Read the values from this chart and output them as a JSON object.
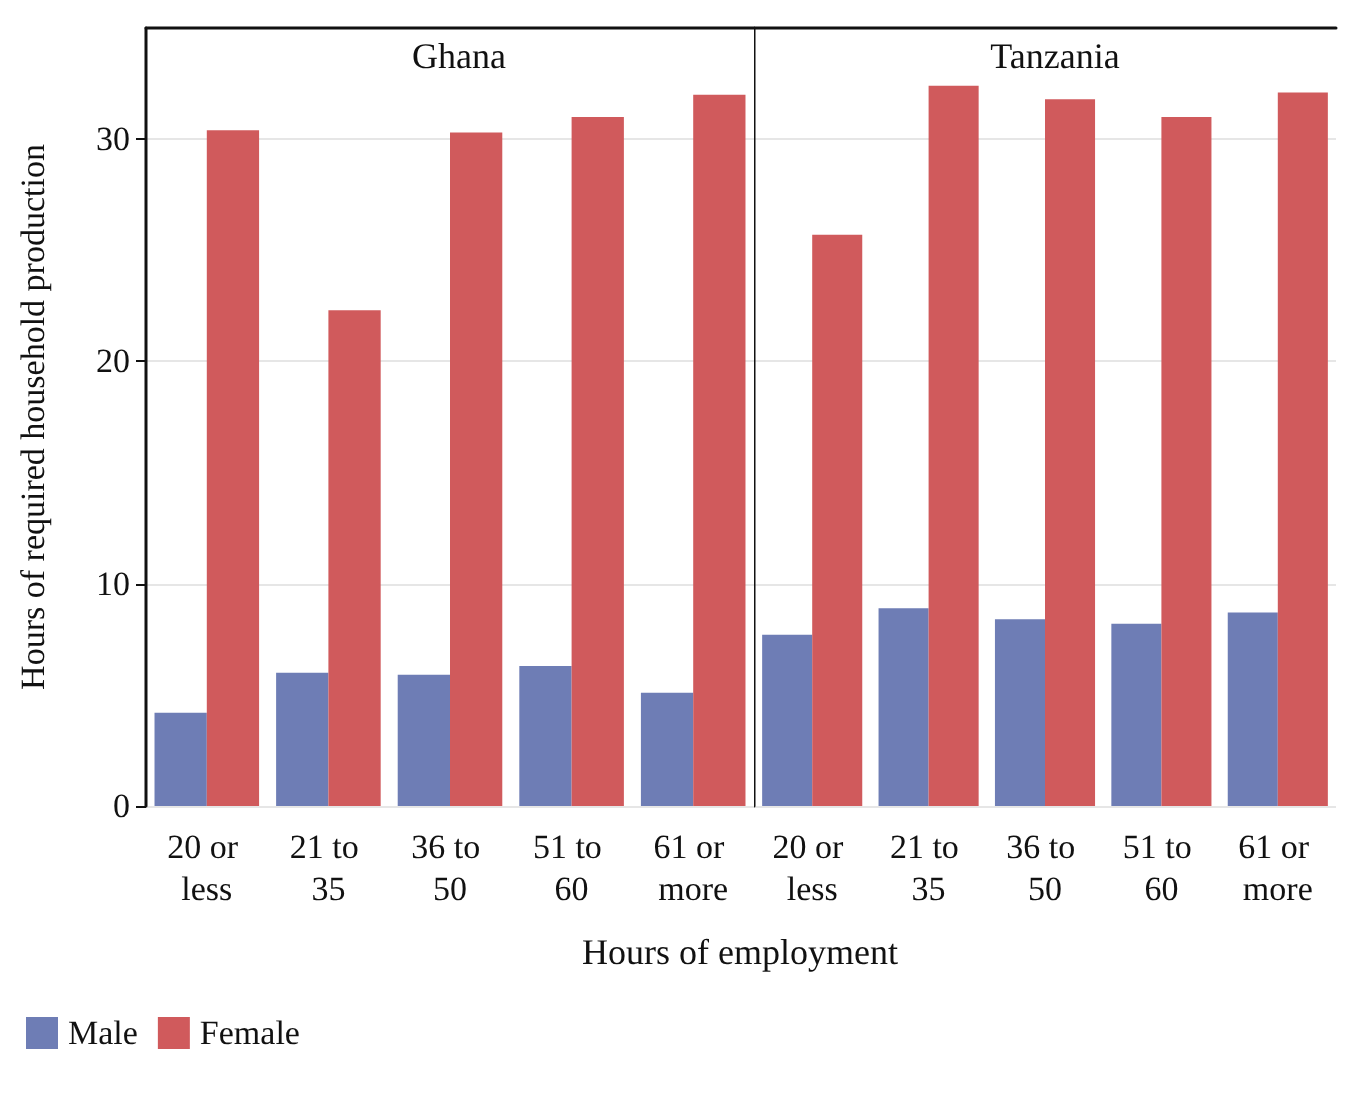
{
  "chart_data": [
    {
      "type": "bar",
      "title": "Ghana",
      "xlabel": "Hours of employment",
      "ylabel": "Hours of required household production",
      "categories": [
        "20 or less",
        "21 to 35",
        "36 to 50",
        "51 to 60",
        "61 or more"
      ],
      "series": [
        {
          "name": "Male",
          "color": "#6e7db5",
          "values": [
            4.2,
            6.0,
            5.9,
            6.3,
            5.1
          ]
        },
        {
          "name": "Female",
          "color": "#d05a5c",
          "values": [
            30.4,
            22.3,
            30.3,
            31.0,
            32.0
          ]
        }
      ],
      "ylim": [
        0,
        35
      ],
      "yticks": [
        0,
        10,
        20,
        30
      ],
      "grid": "y",
      "legend": "bottom left"
    },
    {
      "type": "bar",
      "title": "Tanzania",
      "categories": [
        "20 or less",
        "21 to 35",
        "36 to 50",
        "51 to 60",
        "61 or more"
      ],
      "series": [
        {
          "color": "#6e7db5",
          "values": [
            7.7,
            8.9,
            8.4,
            8.2,
            8.7
          ]
        },
        {
          "color": "#d05a5c",
          "values": [
            25.7,
            32.4,
            31.8,
            31.0,
            32.1
          ]
        }
      ],
      "ylim": [
        0,
        35
      ],
      "yticks": [
        0,
        10,
        20,
        30
      ],
      "grid": "y",
      "tick_labels": "x"
    }
  ]
}
